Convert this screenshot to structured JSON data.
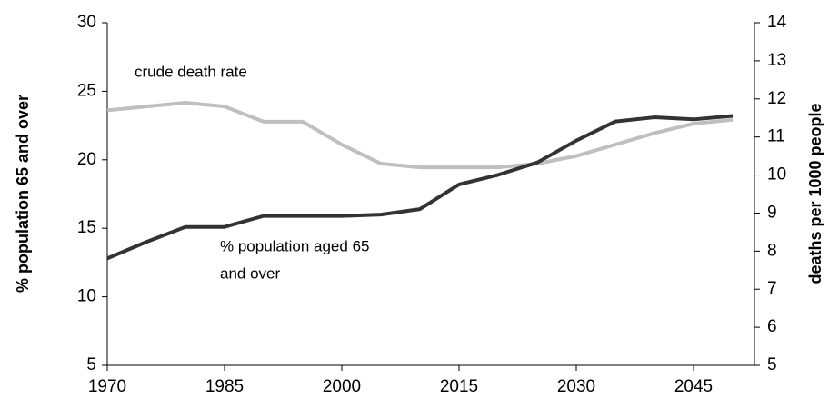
{
  "chart_data": {
    "type": "line",
    "categories": [
      "1970",
      null,
      null,
      "1985",
      null,
      null,
      "2000",
      null,
      null,
      "2015",
      null,
      null,
      "2030",
      null,
      null,
      "2045",
      null
    ],
    "series": [
      {
        "name": "% population aged 65 and over",
        "color": "#333333",
        "values": [
          12.8,
          14.0,
          15.1,
          15.1,
          15.9,
          15.9,
          15.9,
          16.0,
          16.4,
          18.2,
          18.9,
          19.8,
          21.4,
          22.8,
          23.1,
          22.95,
          23.2
        ]
      },
      {
        "name": "crude death rate",
        "color": "#bfbfbf",
        "axis": "y2",
        "values": [
          11.7,
          11.8,
          11.9,
          11.8,
          11.4,
          11.4,
          10.8,
          10.3,
          10.2,
          10.2,
          10.2,
          10.3,
          10.5,
          10.8,
          11.1,
          11.35,
          11.45
        ]
      }
    ],
    "ylabel": "% population 65 and over",
    "y2label": "deaths per 1000 people",
    "annotations": [
      "crude death rate",
      "% population aged 65",
      "and over"
    ],
    "ylim": [
      5,
      30
    ],
    "yticks": [
      5,
      10,
      15,
      20,
      25,
      30
    ],
    "y2lim": [
      5,
      14
    ],
    "y2ticks": [
      5,
      6,
      7,
      8,
      9,
      10,
      11,
      12,
      13,
      14
    ]
  }
}
